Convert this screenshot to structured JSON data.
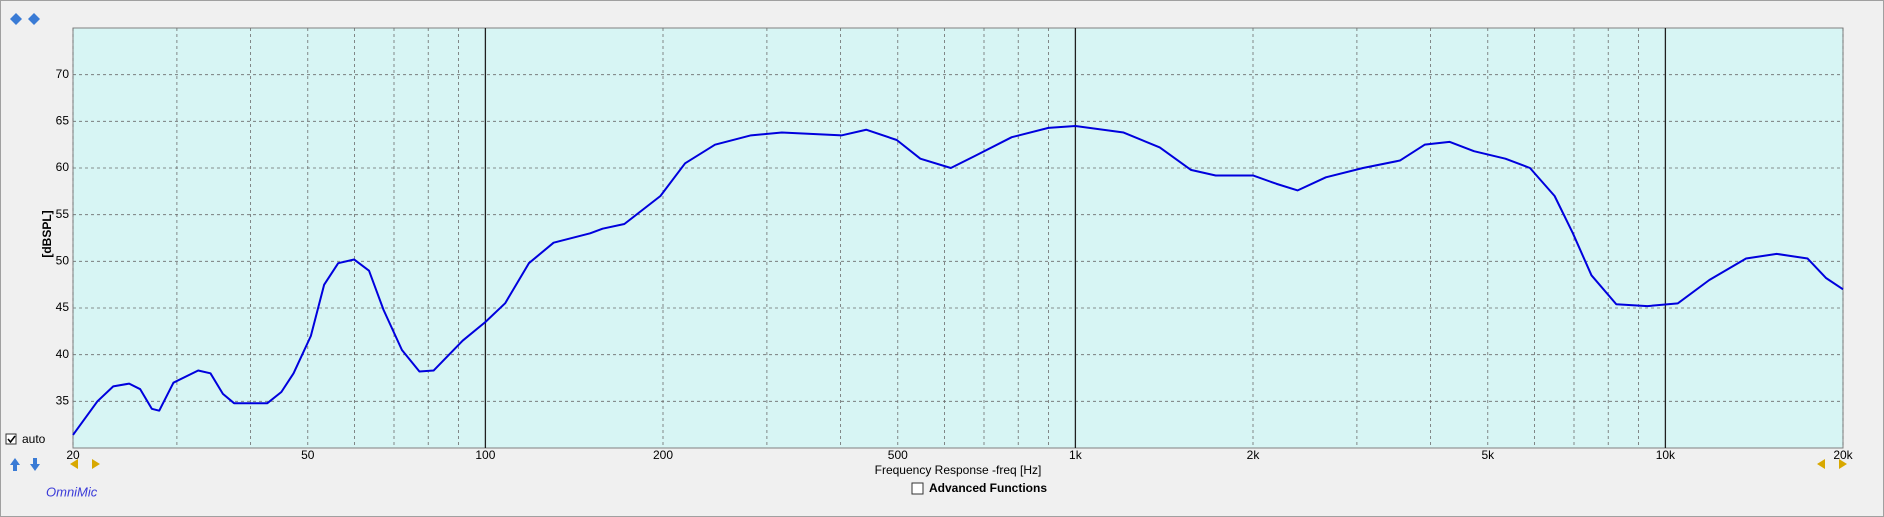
{
  "toolbar": {
    "auto": "auto",
    "advanced": "Advanced Functions",
    "brand": "OmniMic"
  },
  "chart_data": {
    "type": "line",
    "ylabel": "[dBSPL]",
    "xlabel": "Frequency Response -freq [Hz]",
    "x": [
      20,
      22,
      23.4,
      24.9,
      26,
      27.2,
      28,
      29.6,
      32.6,
      34.2,
      35.9,
      37.5,
      42.7,
      45.1,
      47.3,
      50.6,
      53.3,
      56.3,
      59.9,
      63.5,
      67.2,
      72.2,
      77.3,
      81.7,
      91.5,
      100,
      108,
      118.5,
      130.5,
      150.5,
      158,
      172,
      198,
      218,
      245,
      282,
      318,
      402,
      442,
      498,
      546,
      615,
      676,
      780,
      900,
      1000,
      1207,
      1390,
      1569,
      1729,
      2000,
      2193,
      2381,
      2658,
      3072,
      3549,
      3909,
      4306,
      4738,
      5356,
      5895,
      6490,
      6970,
      7494,
      8256,
      9320,
      10500,
      11870,
      13700,
      15440,
      17420,
      18730,
      20000
    ],
    "series": [
      {
        "color": "#0000dd",
        "values": [
          31.4,
          35,
          36.6,
          36.9,
          36.3,
          34.2,
          34,
          37,
          38.3,
          38,
          35.8,
          34.8,
          34.8,
          36,
          38,
          42,
          47.5,
          49.8,
          50.2,
          49,
          44.8,
          40.5,
          38.2,
          38.3,
          41.5,
          43.5,
          45.5,
          49.8,
          52,
          53,
          53.5,
          54,
          57,
          60.5,
          62.5,
          63.5,
          63.8,
          63.5,
          64.1,
          63,
          61,
          60,
          61.3,
          63.3,
          64.3,
          64.5,
          63.8,
          62.2,
          59.8,
          59.2,
          59.2,
          58.3,
          57.6,
          59,
          60,
          60.8,
          62.5,
          62.8,
          61.8,
          61,
          60,
          57,
          53,
          48.5,
          45.4,
          45.2,
          45.5,
          48,
          50.3,
          50.8,
          50.3,
          48.2,
          47
        ]
      }
    ],
    "xscale": "log",
    "xlim": [
      20,
      20000
    ],
    "ylim": [
      30,
      75
    ],
    "xticks": [
      20,
      50,
      100,
      200,
      500,
      {
        "value": 1000,
        "label": "1k"
      },
      {
        "value": 2000,
        "label": "2k"
      },
      {
        "value": 5000,
        "label": "5k"
      },
      {
        "value": 10000,
        "label": "10k"
      },
      {
        "value": 20000,
        "label": "20k"
      }
    ],
    "xminorticks": [
      30,
      40,
      60,
      70,
      80,
      90,
      300,
      400,
      600,
      700,
      800,
      900,
      3000,
      4000,
      6000,
      7000,
      8000,
      9000
    ],
    "yticks": [
      35,
      40,
      45,
      50,
      55,
      60,
      65,
      70
    ],
    "grid": true
  }
}
